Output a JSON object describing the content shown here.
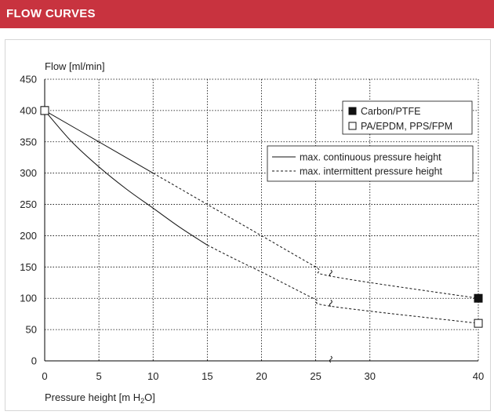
{
  "header": {
    "title": "FLOW CURVES"
  },
  "chart_data": {
    "type": "line",
    "ylabel": "Flow [ml/min]",
    "xlabel": {
      "main": "Pressure height [m H",
      "sub": "2",
      "tail": "O]"
    },
    "xlim": [
      0,
      40
    ],
    "ylim": [
      0,
      450
    ],
    "xticks": [
      0,
      5,
      10,
      15,
      20,
      25,
      30,
      40
    ],
    "xtick_labels": [
      "0",
      "5",
      "10",
      "15",
      "20",
      "25",
      "30",
      "40"
    ],
    "yticks": [
      0,
      50,
      100,
      150,
      200,
      250,
      300,
      350,
      400,
      450
    ],
    "ytick_labels": [
      "0",
      "50",
      "100",
      "150",
      "200",
      "250",
      "300",
      "350",
      "400",
      "450"
    ],
    "grid": true,
    "axis_break_x": 26.5,
    "series": [
      {
        "name": "Carbon/PTFE",
        "marker": "filled-square",
        "continuous": [
          [
            0,
            400
          ],
          [
            5,
            350
          ],
          [
            10,
            300
          ]
        ],
        "intermittent": [
          [
            10,
            300
          ],
          [
            15,
            250
          ],
          [
            20,
            200
          ],
          [
            25,
            150
          ],
          [
            26.5,
            135
          ],
          [
            40,
            100
          ]
        ]
      },
      {
        "name": "PA/EPDM, PPS/FPM",
        "marker": "open-square",
        "continuous": [
          [
            0,
            400
          ],
          [
            2.5,
            350
          ],
          [
            5,
            310
          ],
          [
            7.5,
            275
          ],
          [
            10,
            244
          ],
          [
            12.5,
            213
          ],
          [
            15,
            185
          ]
        ],
        "intermittent": [
          [
            15,
            185
          ],
          [
            17.5,
            163
          ],
          [
            20,
            142
          ],
          [
            22.5,
            120
          ],
          [
            25,
            98
          ],
          [
            26.5,
            87
          ],
          [
            40,
            60
          ]
        ]
      }
    ],
    "legend_markers": {
      "placement": "top-right",
      "entries": [
        "Carbon/PTFE",
        "PA/EPDM, PPS/FPM"
      ]
    },
    "legend_lines": {
      "placement": "right",
      "entries": [
        "max. continuous pressure height",
        "max. intermittent pressure height"
      ]
    }
  }
}
